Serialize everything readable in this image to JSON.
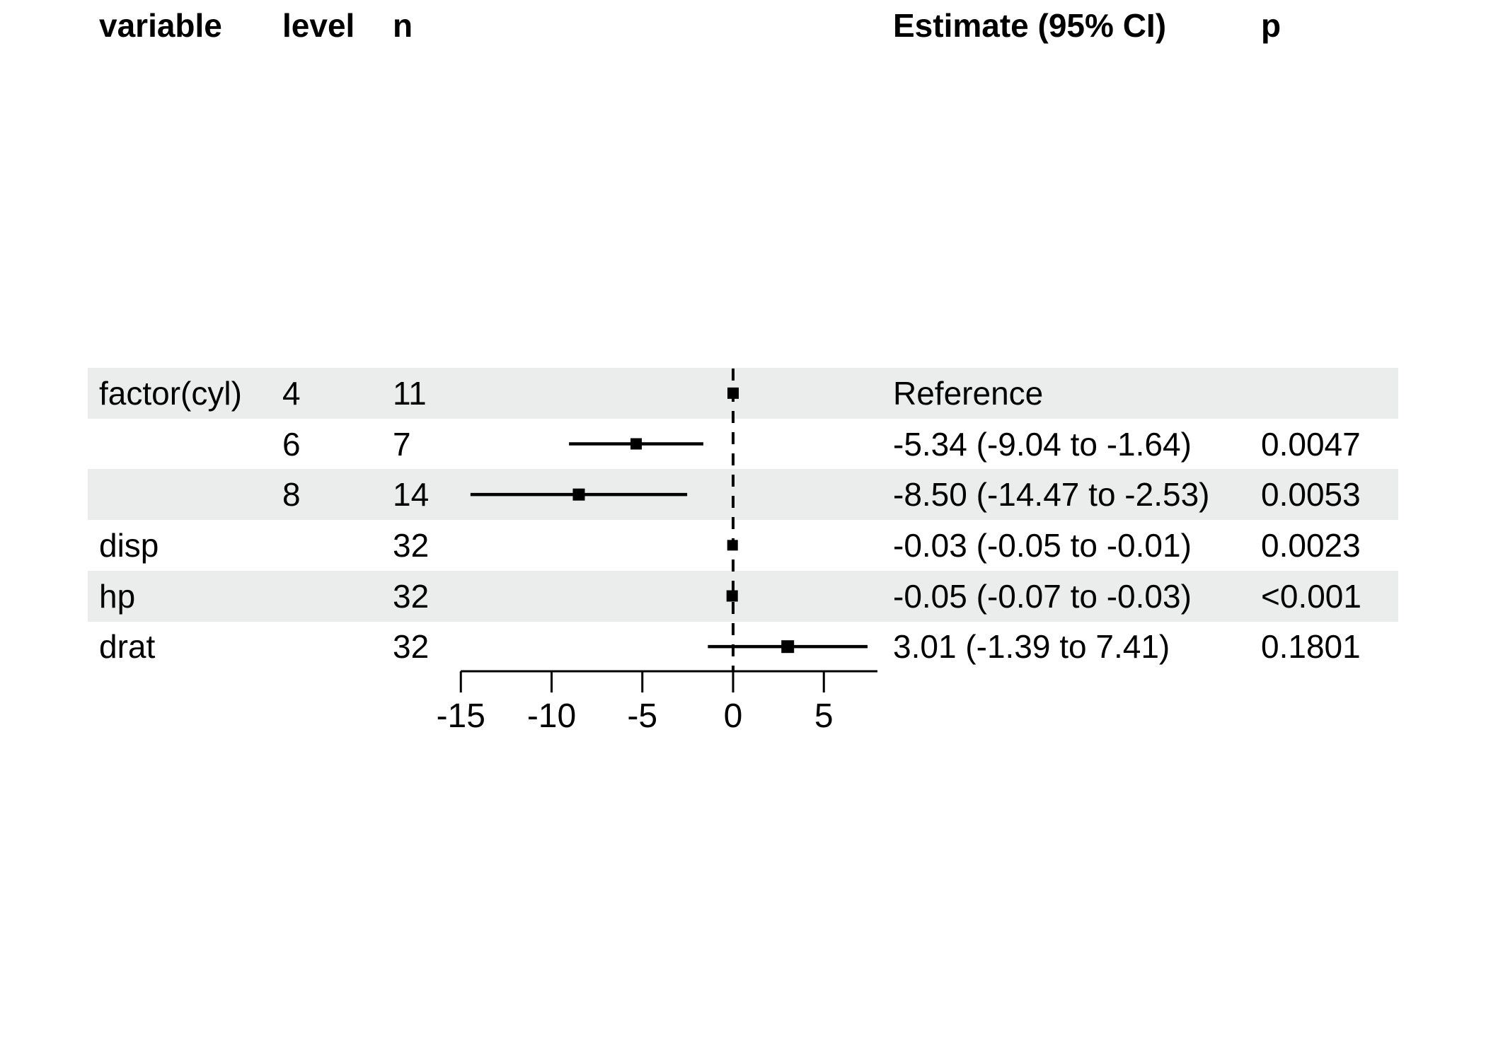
{
  "table": {
    "headers": {
      "variable": "variable",
      "level": "level",
      "n": "n",
      "estimate": "Estimate (95% CI)",
      "p": "p"
    },
    "rows": [
      {
        "variable": "factor(cyl)",
        "level": "4",
        "n": "11",
        "estimate_label": "Reference",
        "p": "",
        "shaded": true
      },
      {
        "variable": "",
        "level": "6",
        "n": "7",
        "estimate_label": "-5.34 (-9.04 to -1.64)",
        "p": "0.0047",
        "shaded": false
      },
      {
        "variable": "",
        "level": "8",
        "n": "14",
        "estimate_label": "-8.50 (-14.47 to -2.53)",
        "p": "0.0053",
        "shaded": true
      },
      {
        "variable": "disp",
        "level": "",
        "n": "32",
        "estimate_label": "-0.03 (-0.05 to -0.01)",
        "p": "0.0023",
        "shaded": false
      },
      {
        "variable": "hp",
        "level": "",
        "n": "32",
        "estimate_label": "-0.05 (-0.07 to -0.03)",
        "p": "<0.001",
        "shaded": true
      },
      {
        "variable": "drat",
        "level": "",
        "n": "32",
        "estimate_label": "3.01 (-1.39 to 7.41)",
        "p": "0.1801",
        "shaded": false
      }
    ]
  },
  "chart_data": {
    "type": "forest",
    "rows": [
      {
        "label": "factor(cyl) 4",
        "n": 11,
        "estimate": 0,
        "ci_low": null,
        "ci_high": null,
        "reference": true,
        "p": null
      },
      {
        "label": "factor(cyl) 6",
        "n": 7,
        "estimate": -5.34,
        "ci_low": -9.04,
        "ci_high": -1.64,
        "reference": false,
        "p": 0.0047
      },
      {
        "label": "factor(cyl) 8",
        "n": 14,
        "estimate": -8.5,
        "ci_low": -14.47,
        "ci_high": -2.53,
        "reference": false,
        "p": 0.0053
      },
      {
        "label": "disp",
        "n": 32,
        "estimate": -0.03,
        "ci_low": -0.05,
        "ci_high": -0.01,
        "reference": false,
        "p": 0.0023
      },
      {
        "label": "hp",
        "n": 32,
        "estimate": -0.05,
        "ci_low": -0.07,
        "ci_high": -0.03,
        "reference": false,
        "p": "<0.001"
      },
      {
        "label": "drat",
        "n": 32,
        "estimate": 3.01,
        "ci_low": -1.39,
        "ci_high": 7.41,
        "reference": false,
        "p": 0.1801
      }
    ],
    "x_ticks": [
      -15,
      -10,
      -5,
      0,
      5
    ],
    "x_tick_labels": [
      "-15",
      "-10",
      "-5",
      "0",
      "5"
    ],
    "xlim": [
      -15,
      7.95
    ],
    "zero_line": 0,
    "marker_sizes": [
      16,
      16,
      17,
      15,
      16,
      18
    ],
    "grid": false,
    "legend": false
  },
  "colors": {
    "background": "#ffffff",
    "band": "#ebedec",
    "text": "#000000",
    "line": "#000000",
    "marker": "#000000"
  }
}
